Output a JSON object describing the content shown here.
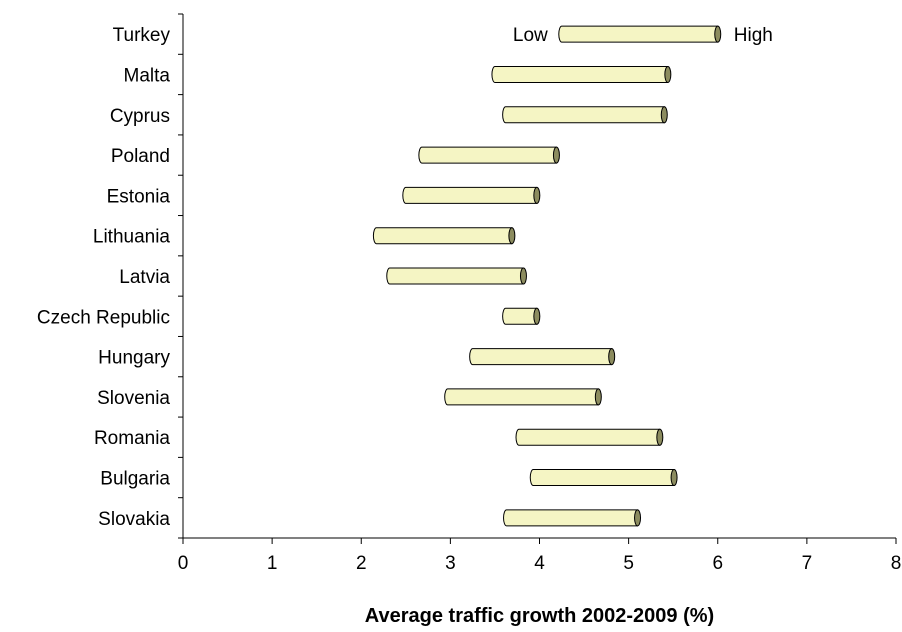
{
  "chart_data": {
    "type": "bar",
    "subtype": "floating-range-horizontal",
    "title": "",
    "xlabel": "Average traffic growth 2002-2009 (%)",
    "ylabel": "",
    "xlim": [
      0,
      8
    ],
    "x_ticks": [
      "0",
      "1",
      "2",
      "3",
      "4",
      "5",
      "6",
      "7",
      "8"
    ],
    "grid": false,
    "categories": [
      "Turkey",
      "Malta",
      "Cyprus",
      "Poland",
      "Estonia",
      "Lithuania",
      "Latvia",
      "Czech Republic",
      "Hungary",
      "Slovenia",
      "Romania",
      "Bulgaria",
      "Slovakia"
    ],
    "series": [
      {
        "name": "Low",
        "values": [
          4.25,
          3.5,
          3.62,
          2.68,
          2.5,
          2.17,
          2.32,
          3.62,
          3.25,
          2.97,
          3.77,
          3.93,
          3.63
        ]
      },
      {
        "name": "High",
        "values": [
          6.0,
          5.44,
          5.4,
          4.19,
          3.97,
          3.69,
          3.82,
          3.97,
          4.81,
          4.66,
          5.35,
          5.51,
          5.1
        ]
      }
    ],
    "annotations": {
      "low": "Low",
      "high": "High"
    },
    "colors": {
      "bar_fill": "#f5f5c4",
      "bar_cap": "#8c8c5f",
      "bar_stroke": "#000000"
    }
  }
}
